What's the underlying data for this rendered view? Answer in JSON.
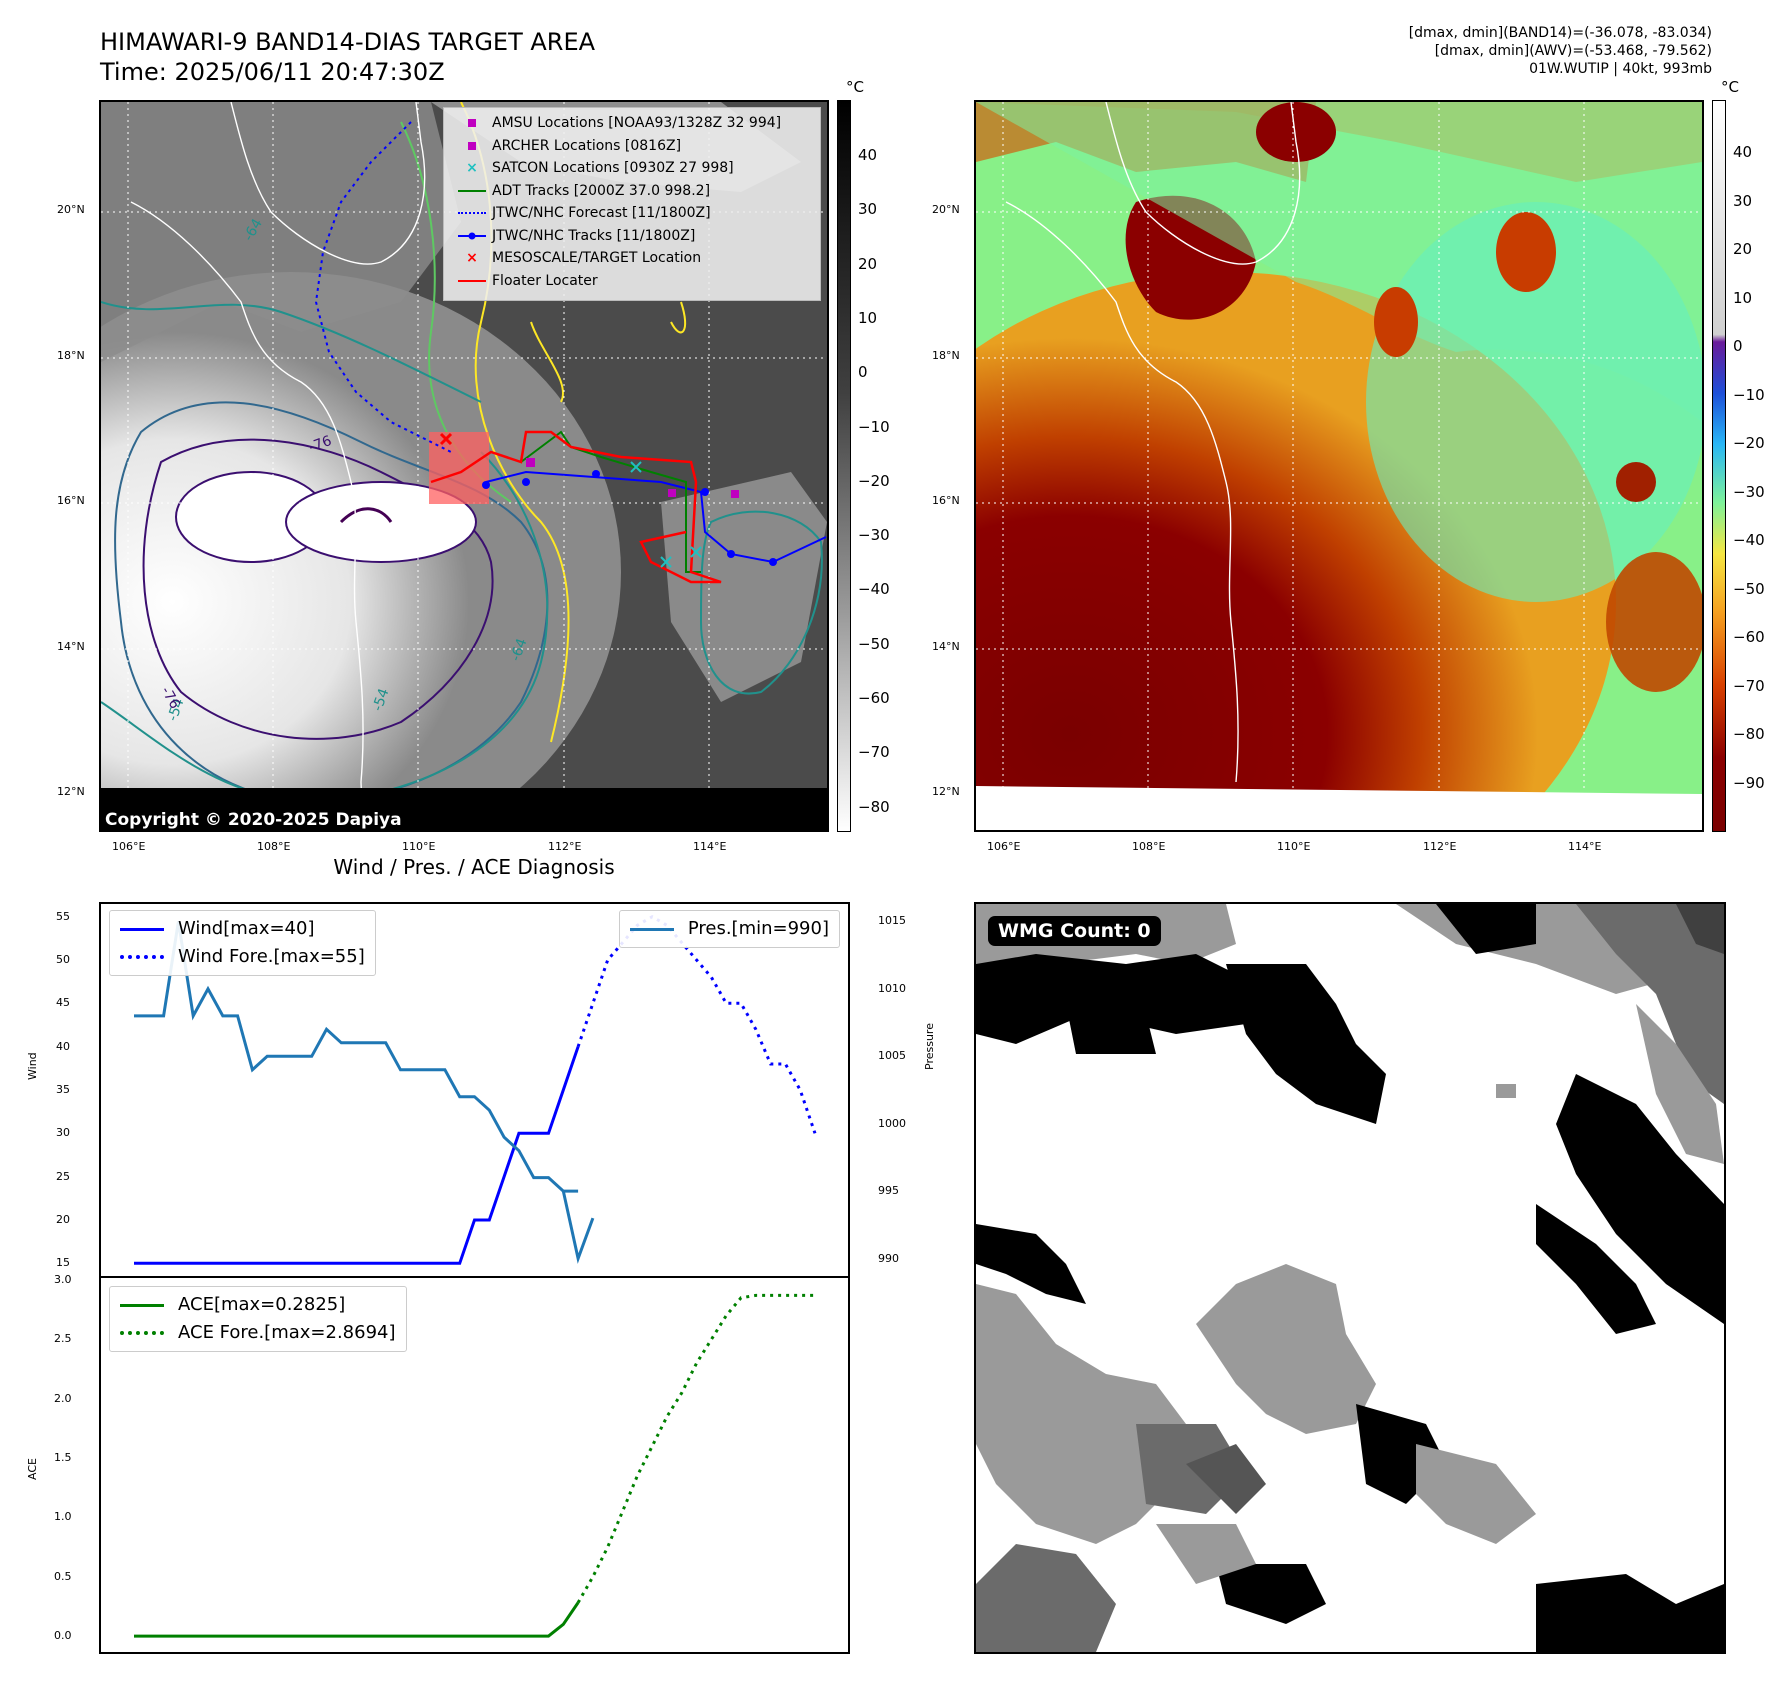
{
  "header": {
    "title_line1": "HIMAWARI-9 BAND14-DIAS TARGET AREA",
    "title_line2": "Time: 2025/06/11 20:47:30Z",
    "info_line1": "[dmax, dmin](BAND14)=(-36.078, -83.034)",
    "info_line2": "[dmax, dmin](AWV)=(-53.468, -79.562)",
    "info_line3": "01W.WUTIP | 40kt, 993mb"
  },
  "maps": {
    "lon_ticks": [
      "106°E",
      "108°E",
      "110°E",
      "112°E",
      "114°E"
    ],
    "lat_ticks": [
      "20°N",
      "18°N",
      "16°N",
      "14°N",
      "12°N"
    ],
    "colorbar_unit": "°C",
    "left_colorbar_ticks": [
      "40",
      "30",
      "20",
      "10",
      "0",
      "−10",
      "−20",
      "−30",
      "−40",
      "−50",
      "−60",
      "−70",
      "−80"
    ],
    "right_colorbar_ticks": [
      "40",
      "30",
      "20",
      "10",
      "0",
      "−10",
      "−20",
      "−30",
      "−40",
      "−50",
      "−60",
      "−70",
      "−80",
      "−90"
    ],
    "copyright": "Copyright © 2020-2025 Dapiya",
    "contour_labels": [
      "-64",
      "-64",
      "-54",
      "-54",
      "-76",
      "-76",
      "-64"
    ]
  },
  "map_legend": [
    {
      "label": "AMSU Locations [NOAA93/1328Z 32 994]",
      "icon": "magenta-square",
      "color": "#c000c0"
    },
    {
      "label": "ARCHER Locations [0816Z]",
      "icon": "magenta-square",
      "color": "#c000c0"
    },
    {
      "label": "SATCON Locations [0930Z 27 998]",
      "icon": "cyan-x",
      "color": "#20c0c0"
    },
    {
      "label": "ADT Tracks [2000Z 37.0 998.2]",
      "icon": "green-line",
      "color": "#008000"
    },
    {
      "label": "JTWC/NHC Forecast [11/1800Z]",
      "icon": "blue-dotted-line",
      "color": "#0000ff"
    },
    {
      "label": "JTWC/NHC Tracks [11/1800Z]",
      "icon": "blue-line-dot",
      "color": "#0000ff"
    },
    {
      "label": "MESOSCALE/TARGET Location",
      "icon": "red-x",
      "color": "#ff0000"
    },
    {
      "label": "Floater Locater",
      "icon": "red-line",
      "color": "#ff0000"
    }
  ],
  "diag": {
    "title": "Wind / Pres. / ACE Diagnosis",
    "wind_ylabel": "Wind",
    "pres_ylabel": "Pressure",
    "ace_ylabel": "ACE",
    "wind_legend": [
      "Wind[max=40]",
      "Wind Fore.[max=55]"
    ],
    "pres_legend": "Pres.[min=990]",
    "ace_legend": [
      "ACE[max=0.2825]",
      "ACE Fore.[max=2.8694]"
    ]
  },
  "wmg": {
    "label": "WMG Count: 0"
  },
  "chart_data": [
    {
      "type": "line",
      "title": "Wind / Pres. / ACE Diagnosis",
      "ylabel": "Wind",
      "ylim": [
        14,
        56
      ],
      "yticks": [
        15,
        20,
        25,
        30,
        35,
        40,
        45,
        50,
        55
      ],
      "series": [
        {
          "name": "Wind[max=40]",
          "color": "#0000ff",
          "style": "solid",
          "x": [
            0,
            1,
            2,
            3,
            4,
            5,
            6,
            7,
            8,
            9,
            10,
            11,
            12,
            13,
            14,
            15,
            16,
            17,
            18,
            19,
            20,
            21,
            22,
            23,
            24,
            25,
            26,
            27,
            28,
            29,
            30
          ],
          "values": [
            15,
            15,
            15,
            15,
            15,
            15,
            15,
            15,
            15,
            15,
            15,
            15,
            15,
            15,
            15,
            15,
            15,
            15,
            15,
            15,
            15,
            15,
            15,
            20,
            20,
            25,
            30,
            30,
            30,
            35,
            40
          ]
        },
        {
          "name": "Wind Fore.[max=55]",
          "color": "#0000ff",
          "style": "dotted",
          "x": [
            30,
            31,
            32,
            33,
            34,
            35,
            36,
            37,
            38,
            39,
            40,
            41,
            42,
            43,
            44,
            45,
            46
          ],
          "values": [
            40,
            45,
            50,
            52,
            54,
            55,
            54,
            52,
            50,
            48,
            45,
            45,
            42,
            38,
            38,
            35,
            30
          ]
        }
      ]
    },
    {
      "type": "line",
      "ylabel": "Pressure",
      "ylim": [
        989,
        1016
      ],
      "yticks": [
        990,
        995,
        1000,
        1005,
        1010,
        1015
      ],
      "series": [
        {
          "name": "Pres.[min=990]",
          "color": "#1f77b4",
          "style": "solid",
          "x": [
            0,
            1,
            2,
            3,
            4,
            5,
            6,
            7,
            8,
            9,
            10,
            11,
            12,
            13,
            14,
            15,
            16,
            17,
            18,
            19,
            20,
            21,
            22,
            23,
            24,
            25,
            26,
            27,
            28,
            29,
            30
          ],
          "values": [
            1008,
            1008,
            1008,
            1015,
            1008,
            1010,
            1008,
            1008,
            1004,
            1005,
            1005,
            1005,
            1005,
            1007,
            1006,
            1006,
            1006,
            1006,
            1004,
            1004,
            1004,
            1004,
            1002,
            1002,
            1001,
            999,
            998,
            996,
            996,
            995,
            995
          ]
        },
        {
          "name": "",
          "color": "#1f77b4",
          "style": "solid",
          "x": [
            29,
            30,
            31
          ],
          "values": [
            995,
            990,
            993
          ]
        }
      ]
    },
    {
      "type": "line",
      "ylabel": "ACE",
      "ylim": [
        -0.1,
        3.0
      ],
      "yticks": [
        0.0,
        0.5,
        1.0,
        1.5,
        2.0,
        2.5,
        3.0
      ],
      "series": [
        {
          "name": "ACE[max=0.2825]",
          "color": "#008000",
          "style": "solid",
          "x": [
            0,
            1,
            2,
            3,
            4,
            5,
            6,
            7,
            8,
            9,
            10,
            11,
            12,
            13,
            14,
            15,
            16,
            17,
            18,
            19,
            20,
            21,
            22,
            23,
            24,
            25,
            26,
            27,
            28,
            29,
            30
          ],
          "values": [
            0,
            0,
            0,
            0,
            0,
            0,
            0,
            0,
            0,
            0,
            0,
            0,
            0,
            0,
            0,
            0,
            0,
            0,
            0,
            0,
            0,
            0,
            0,
            0,
            0,
            0,
            0,
            0,
            0,
            0.1,
            0.2825
          ]
        },
        {
          "name": "ACE Fore.[max=2.8694]",
          "color": "#008000",
          "style": "dotted",
          "x": [
            30,
            31,
            32,
            33,
            34,
            35,
            36,
            37,
            38,
            39,
            40,
            41,
            42,
            43,
            44,
            45,
            46
          ],
          "values": [
            0.2825,
            0.5,
            0.75,
            1.05,
            1.35,
            1.6,
            1.85,
            2.05,
            2.3,
            2.5,
            2.7,
            2.85,
            2.87,
            2.87,
            2.87,
            2.87,
            2.87
          ]
        }
      ]
    }
  ]
}
